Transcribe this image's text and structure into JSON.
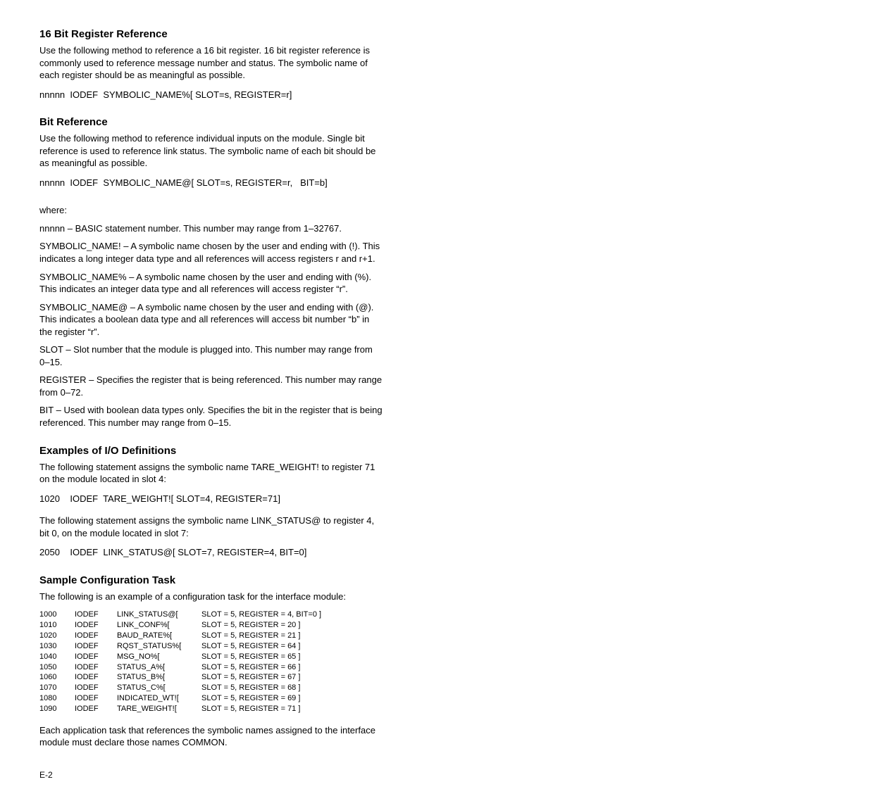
{
  "section1": {
    "heading": "16 Bit Register Reference",
    "p1": "Use the following method to reference a 16 bit register. 16 bit register reference is commonly used to reference message number and status. The symbolic name of each register should be as meaningful as possible.",
    "code": "nnnnn  IODEF  SYMBOLIC_NAME%[ SLOT=s, REGISTER=r]"
  },
  "section2": {
    "heading": "Bit Reference",
    "p1": "Use the following method to reference individual inputs on the module. Single bit reference is used to reference link status. The symbolic name of each bit should be as meaningful as possible.",
    "code": "nnnnn  IODEF  SYMBOLIC_NAME@[ SLOT=s, REGISTER=r,   BIT=b]"
  },
  "where": {
    "intro": "where:",
    "l1": "nnnnn – BASIC statement number. This number may range from 1–32767.",
    "l2": "SYMBOLIC_NAME! – A symbolic name chosen by the user and ending with (!). This indicates a long integer data type and all references will access registers r and r+1.",
    "l3": "SYMBOLIC_NAME% – A symbolic name chosen by the user and ending with (%). This indicates an integer data type and all references will access register “r”.",
    "l4": "SYMBOLIC_NAME@ – A symbolic name chosen by the user and ending with (@). This indicates a boolean data type and all references will access bit number “b” in the register “r”.",
    "l5": "SLOT – Slot number that the module is plugged into. This number may range from 0–15.",
    "l6": "REGISTER – Specifies the register that is being referenced. This number may range from 0–72.",
    "l7": "BIT – Used with boolean data types only. Specifies the bit in the register that is being referenced. This number may range from 0–15."
  },
  "section3": {
    "heading": "Examples of I/O Definitions",
    "p1": "The following statement assigns the symbolic name TARE_WEIGHT! to register 71 on the module located in slot 4:",
    "code1": "1020    IODEF  TARE_WEIGHT![ SLOT=4, REGISTER=71]",
    "p2": "The following statement assigns the symbolic name LINK_STATUS@ to register 4, bit 0, on the module located in slot 7:",
    "code2": "2050    IODEF  LINK_STATUS@[ SLOT=7, REGISTER=4, BIT=0]"
  },
  "section4": {
    "heading": "Sample Configuration Task",
    "p1": "The following is an example of a configuration task for the interface module:",
    "rows": [
      {
        "n": "1000",
        "op": "IODEF",
        "name": "LINK_STATUS@[",
        "args": "SLOT = 5, REGISTER = 4, BIT=0 ]"
      },
      {
        "n": "1010",
        "op": "IODEF",
        "name": "LINK_CONF%[",
        "args": "SLOT = 5, REGISTER = 20 ]"
      },
      {
        "n": "1020",
        "op": "IODEF",
        "name": "BAUD_RATE%[",
        "args": "SLOT = 5, REGISTER = 21 ]"
      },
      {
        "n": "1030",
        "op": "IODEF",
        "name": "RQST_STATUS%[",
        "args": "SLOT = 5, REGISTER = 64 ]"
      },
      {
        "n": "1040",
        "op": "IODEF",
        "name": "MSG_NO%[",
        "args": "SLOT = 5, REGISTER = 65 ]"
      },
      {
        "n": "1050",
        "op": "IODEF",
        "name": "STATUS_A%[",
        "args": "SLOT = 5, REGISTER = 66 ]"
      },
      {
        "n": "1060",
        "op": "IODEF",
        "name": "STATUS_B%[",
        "args": "SLOT = 5, REGISTER = 67 ]"
      },
      {
        "n": "1070",
        "op": "IODEF",
        "name": "STATUS_C%[",
        "args": "SLOT = 5, REGISTER = 68 ]"
      },
      {
        "n": "1080",
        "op": "IODEF",
        "name": "INDICATED_WT![",
        "args": "SLOT = 5, REGISTER = 69 ]"
      },
      {
        "n": "1090",
        "op": "IODEF",
        "name": "TARE_WEIGHT![",
        "args": "SLOT = 5, REGISTER = 71 ]"
      }
    ],
    "p2": "Each application task that references the symbolic names assigned to the interface module must declare those names COMMON."
  },
  "pageNumber": "E-2"
}
